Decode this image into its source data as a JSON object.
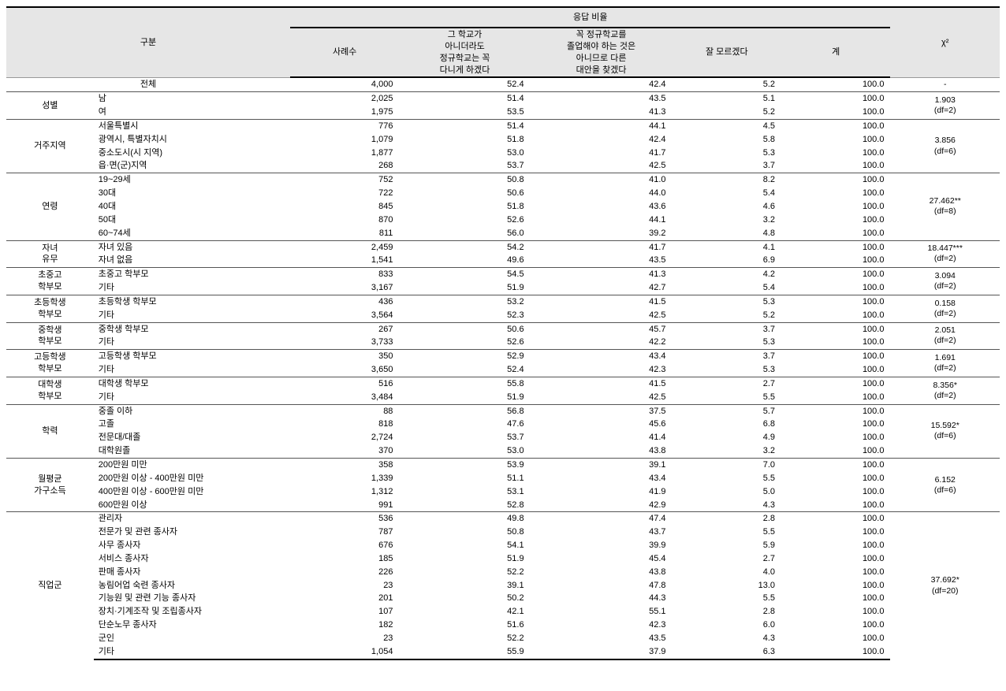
{
  "table": {
    "headers": {
      "category": "구분",
      "response": "응답 비율",
      "cases": "사례수",
      "opt1": "그 학교가\n아니더라도\n정규학교는 꼭\n다니게 하겠다",
      "opt2": "꼭 정규학교를\n졸업해야 하는 것은\n아니므로 다른\n대안을 찾겠다",
      "opt3": "잘 모르겠다",
      "total": "계",
      "chi": "χ²"
    },
    "total_row": {
      "label": "전체",
      "cases": "4,000",
      "v1": "52.4",
      "v2": "42.4",
      "v3": "5.2",
      "tot": "100.0",
      "chi": "-"
    },
    "groups": [
      {
        "cat": "성별",
        "chi": "1.903\n(df=2)",
        "rows": [
          {
            "sub": "남",
            "cases": "2,025",
            "v1": "51.4",
            "v2": "43.5",
            "v3": "5.1",
            "tot": "100.0"
          },
          {
            "sub": "여",
            "cases": "1,975",
            "v1": "53.5",
            "v2": "41.3",
            "v3": "5.2",
            "tot": "100.0"
          }
        ]
      },
      {
        "cat": "거주지역",
        "chi": "3.856\n(df=6)",
        "rows": [
          {
            "sub": "서울특별시",
            "cases": "776",
            "v1": "51.4",
            "v2": "44.1",
            "v3": "4.5",
            "tot": "100.0"
          },
          {
            "sub": "광역시, 특별자치시",
            "cases": "1,079",
            "v1": "51.8",
            "v2": "42.4",
            "v3": "5.8",
            "tot": "100.0"
          },
          {
            "sub": "중소도시(시 지역)",
            "cases": "1,877",
            "v1": "53.0",
            "v2": "41.7",
            "v3": "5.3",
            "tot": "100.0"
          },
          {
            "sub": "읍·면(군)지역",
            "cases": "268",
            "v1": "53.7",
            "v2": "42.5",
            "v3": "3.7",
            "tot": "100.0"
          }
        ]
      },
      {
        "cat": "연령",
        "chi": "27.462**\n(df=8)",
        "rows": [
          {
            "sub": "19~29세",
            "cases": "752",
            "v1": "50.8",
            "v2": "41.0",
            "v3": "8.2",
            "tot": "100.0"
          },
          {
            "sub": "30대",
            "cases": "722",
            "v1": "50.6",
            "v2": "44.0",
            "v3": "5.4",
            "tot": "100.0"
          },
          {
            "sub": "40대",
            "cases": "845",
            "v1": "51.8",
            "v2": "43.6",
            "v3": "4.6",
            "tot": "100.0"
          },
          {
            "sub": "50대",
            "cases": "870",
            "v1": "52.6",
            "v2": "44.1",
            "v3": "3.2",
            "tot": "100.0"
          },
          {
            "sub": "60~74세",
            "cases": "811",
            "v1": "56.0",
            "v2": "39.2",
            "v3": "4.8",
            "tot": "100.0"
          }
        ]
      },
      {
        "cat": "자녀\n유무",
        "chi": "18.447***\n(df=2)",
        "rows": [
          {
            "sub": "자녀 있음",
            "cases": "2,459",
            "v1": "54.2",
            "v2": "41.7",
            "v3": "4.1",
            "tot": "100.0"
          },
          {
            "sub": "자녀 없음",
            "cases": "1,541",
            "v1": "49.6",
            "v2": "43.5",
            "v3": "6.9",
            "tot": "100.0"
          }
        ]
      },
      {
        "cat": "초중고\n학부모",
        "chi": "3.094\n(df=2)",
        "rows": [
          {
            "sub": "초중고 학부모",
            "cases": "833",
            "v1": "54.5",
            "v2": "41.3",
            "v3": "4.2",
            "tot": "100.0"
          },
          {
            "sub": "기타",
            "cases": "3,167",
            "v1": "51.9",
            "v2": "42.7",
            "v3": "5.4",
            "tot": "100.0"
          }
        ]
      },
      {
        "cat": "초등학생\n학부모",
        "chi": "0.158\n(df=2)",
        "rows": [
          {
            "sub": "초등학생 학부모",
            "cases": "436",
            "v1": "53.2",
            "v2": "41.5",
            "v3": "5.3",
            "tot": "100.0"
          },
          {
            "sub": "기타",
            "cases": "3,564",
            "v1": "52.3",
            "v2": "42.5",
            "v3": "5.2",
            "tot": "100.0"
          }
        ]
      },
      {
        "cat": "중학생\n학부모",
        "chi": "2.051\n(df=2)",
        "rows": [
          {
            "sub": "중학생 학부모",
            "cases": "267",
            "v1": "50.6",
            "v2": "45.7",
            "v3": "3.7",
            "tot": "100.0"
          },
          {
            "sub": "기타",
            "cases": "3,733",
            "v1": "52.6",
            "v2": "42.2",
            "v3": "5.3",
            "tot": "100.0"
          }
        ]
      },
      {
        "cat": "고등학생\n학부모",
        "chi": "1.691\n(df=2)",
        "rows": [
          {
            "sub": "고등학생 학부모",
            "cases": "350",
            "v1": "52.9",
            "v2": "43.4",
            "v3": "3.7",
            "tot": "100.0"
          },
          {
            "sub": "기타",
            "cases": "3,650",
            "v1": "52.4",
            "v2": "42.3",
            "v3": "5.3",
            "tot": "100.0"
          }
        ]
      },
      {
        "cat": "대학생\n학부모",
        "chi": "8.356*\n(df=2)",
        "rows": [
          {
            "sub": "대학생 학부모",
            "cases": "516",
            "v1": "55.8",
            "v2": "41.5",
            "v3": "2.7",
            "tot": "100.0"
          },
          {
            "sub": "기타",
            "cases": "3,484",
            "v1": "51.9",
            "v2": "42.5",
            "v3": "5.5",
            "tot": "100.0"
          }
        ]
      },
      {
        "cat": "학력",
        "chi": "15.592*\n(df=6)",
        "rows": [
          {
            "sub": "중졸 이하",
            "cases": "88",
            "v1": "56.8",
            "v2": "37.5",
            "v3": "5.7",
            "tot": "100.0"
          },
          {
            "sub": "고졸",
            "cases": "818",
            "v1": "47.6",
            "v2": "45.6",
            "v3": "6.8",
            "tot": "100.0"
          },
          {
            "sub": "전문대/대졸",
            "cases": "2,724",
            "v1": "53.7",
            "v2": "41.4",
            "v3": "4.9",
            "tot": "100.0"
          },
          {
            "sub": "대학원졸",
            "cases": "370",
            "v1": "53.0",
            "v2": "43.8",
            "v3": "3.2",
            "tot": "100.0"
          }
        ]
      },
      {
        "cat": "월평균\n가구소득",
        "chi": "6.152\n(df=6)",
        "rows": [
          {
            "sub": "200만원 미만",
            "cases": "358",
            "v1": "53.9",
            "v2": "39.1",
            "v3": "7.0",
            "tot": "100.0"
          },
          {
            "sub": "200만원 이상 - 400만원 미만",
            "cases": "1,339",
            "v1": "51.1",
            "v2": "43.4",
            "v3": "5.5",
            "tot": "100.0"
          },
          {
            "sub": "400만원 이상 - 600만원 미만",
            "cases": "1,312",
            "v1": "53.1",
            "v2": "41.9",
            "v3": "5.0",
            "tot": "100.0"
          },
          {
            "sub": "600만원 이상",
            "cases": "991",
            "v1": "52.8",
            "v2": "42.9",
            "v3": "4.3",
            "tot": "100.0"
          }
        ]
      },
      {
        "cat": "직업군",
        "chi": "37.692*\n(df=20)",
        "rows": [
          {
            "sub": "관리자",
            "cases": "536",
            "v1": "49.8",
            "v2": "47.4",
            "v3": "2.8",
            "tot": "100.0"
          },
          {
            "sub": "전문가 및 관련  종사자",
            "cases": "787",
            "v1": "50.8",
            "v2": "43.7",
            "v3": "5.5",
            "tot": "100.0"
          },
          {
            "sub": "사무 종사자",
            "cases": "676",
            "v1": "54.1",
            "v2": "39.9",
            "v3": "5.9",
            "tot": "100.0"
          },
          {
            "sub": "서비스 종사자",
            "cases": "185",
            "v1": "51.9",
            "v2": "45.4",
            "v3": "2.7",
            "tot": "100.0"
          },
          {
            "sub": "판매 종사자",
            "cases": "226",
            "v1": "52.2",
            "v2": "43.8",
            "v3": "4.0",
            "tot": "100.0"
          },
          {
            "sub": "농림어업 숙련 종사자",
            "cases": "23",
            "v1": "39.1",
            "v2": "47.8",
            "v3": "13.0",
            "tot": "100.0"
          },
          {
            "sub": "기능원 및 관련 기능 종사자",
            "cases": "201",
            "v1": "50.2",
            "v2": "44.3",
            "v3": "5.5",
            "tot": "100.0"
          },
          {
            "sub": "장치·기계조작 및 조립종사자",
            "cases": "107",
            "v1": "42.1",
            "v2": "55.1",
            "v3": "2.8",
            "tot": "100.0"
          },
          {
            "sub": "단순노무 종사자",
            "cases": "182",
            "v1": "51.6",
            "v2": "42.3",
            "v3": "6.0",
            "tot": "100.0"
          },
          {
            "sub": "군인",
            "cases": "23",
            "v1": "52.2",
            "v2": "43.5",
            "v3": "4.3",
            "tot": "100.0"
          },
          {
            "sub": "기타",
            "cases": "1,054",
            "v1": "55.9",
            "v2": "37.9",
            "v3": "6.3",
            "tot": "100.0"
          }
        ]
      }
    ]
  },
  "style": {
    "header_bg": "#e6e6e6",
    "border_color": "#555555",
    "font_size_body": 11,
    "font_size_chi": 10.5
  }
}
